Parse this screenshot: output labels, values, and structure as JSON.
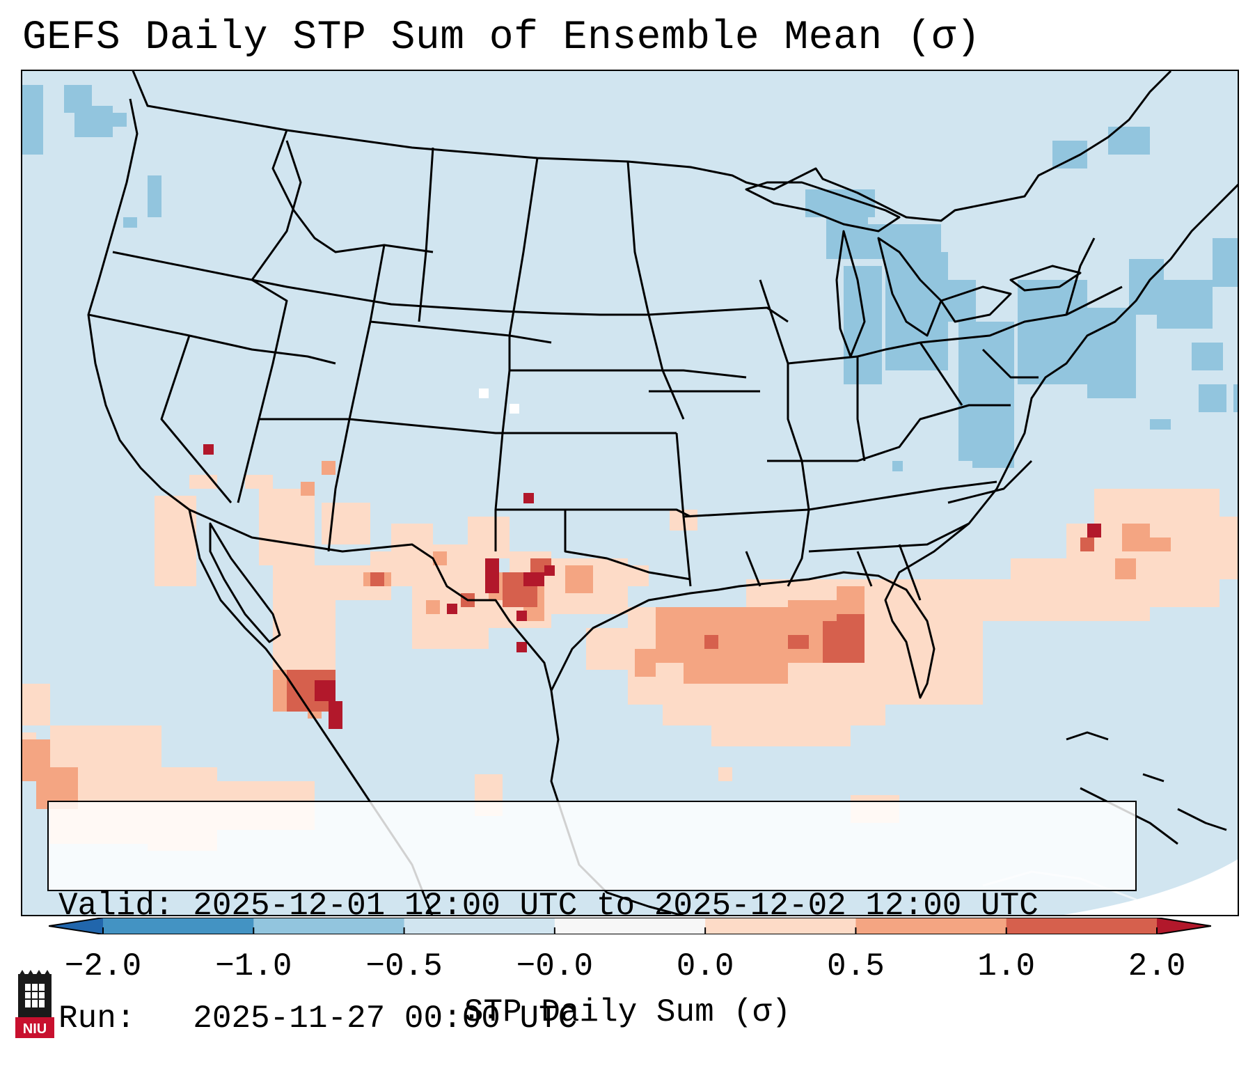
{
  "title": "GEFS Daily STP Sum of Ensemble Mean (σ)",
  "info": {
    "valid": "Valid: 2025-12-01 12:00 UTC to 2025-12-02 12:00 UTC",
    "run": "Run:   2025-11-27 00:00 UTC"
  },
  "colorbar": {
    "label": "STP Daily Sum (σ)",
    "ticks": [
      "−2.0",
      "−1.0",
      "−0.5",
      "−0.0",
      "0.0",
      "0.5",
      "1.0",
      "2.0"
    ],
    "colors": [
      "#4393c3",
      "#92c5de",
      "#d1e5f0",
      "#f7f7f7",
      "#fddbc7",
      "#f4a582",
      "#d6604d"
    ],
    "extend_low": "#2166ac",
    "extend_high": "#b2182b"
  },
  "colors": {
    "background_field": "#d1e5f0",
    "state_lines": "#000000"
  },
  "logo": {
    "text": "NIU",
    "color": "#c8102e"
  }
}
